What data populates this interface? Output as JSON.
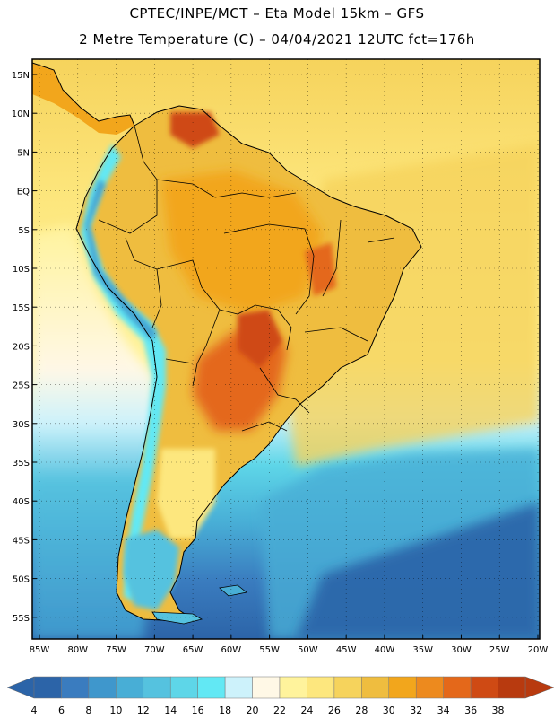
{
  "header": {
    "line1": "CPTEC/INPE/MCT –  Eta Model 15km – GFS",
    "line2": "2 Metre Temperature (C) – 04/04/2021 12UTC fct=176h"
  },
  "axes": {
    "lat_labels": [
      "15N",
      "10N",
      "5N",
      "EQ",
      "5S",
      "10S",
      "15S",
      "20S",
      "25S",
      "30S",
      "35S",
      "40S",
      "45S",
      "50S",
      "55S"
    ],
    "lon_labels": [
      "85W",
      "80W",
      "75W",
      "70W",
      "65W",
      "60W",
      "55W",
      "50W",
      "45W",
      "40W",
      "35W",
      "30W",
      "25W",
      "20W"
    ]
  },
  "colorbar": {
    "labels": [
      "4",
      "6",
      "8",
      "10",
      "12",
      "14",
      "16",
      "18",
      "20",
      "22",
      "24",
      "26",
      "28",
      "30",
      "32",
      "34",
      "36",
      "38"
    ],
    "colors": [
      "#2c64a8",
      "#3a7cbf",
      "#3f97cc",
      "#48aed6",
      "#55c2df",
      "#5ed6e8",
      "#62e8f4",
      "#cdf2fb",
      "#fff8e6",
      "#fff39c",
      "#fde77e",
      "#f6d35c",
      "#efbd3f",
      "#f2a61c",
      "#ed8a1e",
      "#e4681a",
      "#cf4a14",
      "#b83a0f"
    ]
  },
  "colors": {
    "ocean_south": "#2c64a8",
    "land_warm": "#efbd3f",
    "land_hot": "#cf4a14",
    "andes": "#62e8f4"
  }
}
